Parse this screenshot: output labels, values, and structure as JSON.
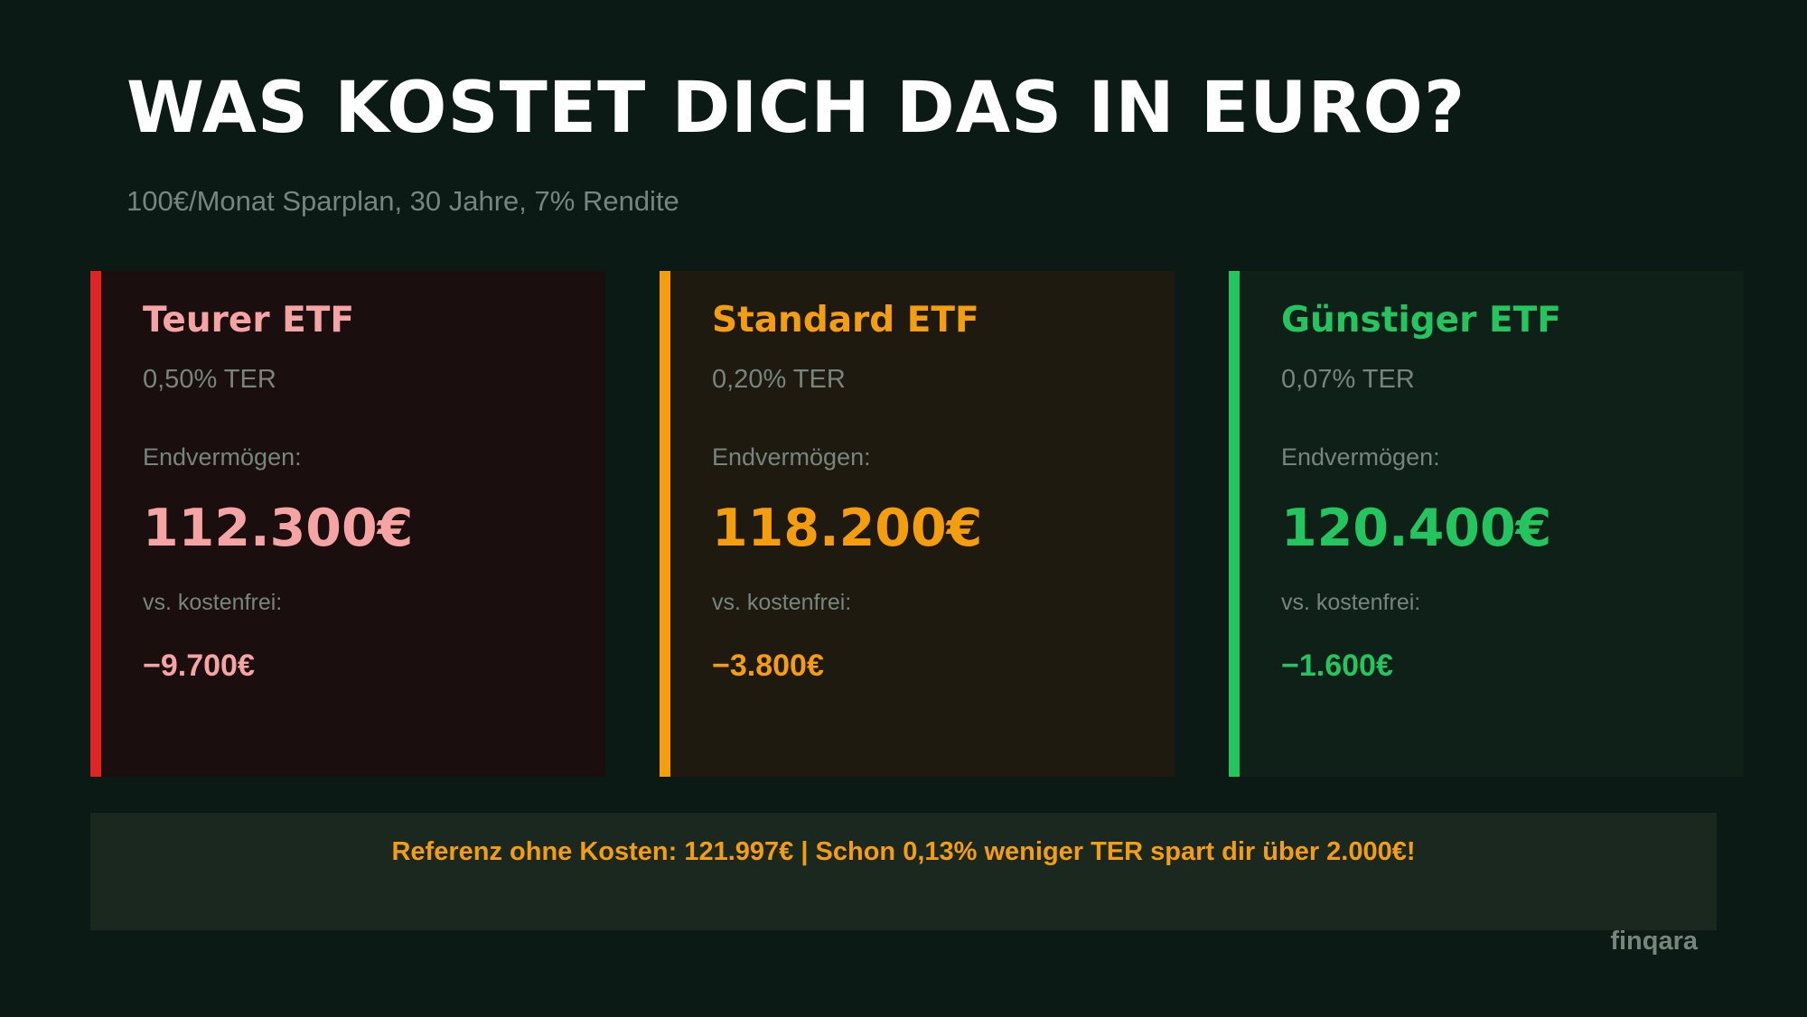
{
  "header": {
    "title": "WAS KOSTET DICH DAS IN EURO?",
    "subtitle": "100€/Monat Sparplan, 30 Jahre, 7% Rendite"
  },
  "cards": [
    {
      "name": "Teurer ETF",
      "ter": "0,50% TER",
      "end_label": "Endvermögen:",
      "end_value": "112.300€",
      "vs_label": "vs. kostenfrei:",
      "diff": "−9.700€",
      "accent": "#e02424",
      "text_color": "#f5a3a3",
      "bg": "#1a0e0f"
    },
    {
      "name": "Standard ETF",
      "ter": "0,20% TER",
      "end_label": "Endvermögen:",
      "end_value": "118.200€",
      "vs_label": "vs. kostenfrei:",
      "diff": "−3.800€",
      "accent": "#f59e0b",
      "text_color": "#f59e0b",
      "bg": "#1e1a10"
    },
    {
      "name": "Günstiger ETF",
      "ter": "0,07% TER",
      "end_label": "Endvermögen:",
      "end_value": "120.400€",
      "vs_label": "vs. kostenfrei:",
      "diff": "−1.600€",
      "accent": "#22c55e",
      "text_color": "#22c55e",
      "bg": "#0f2018"
    }
  ],
  "banner": {
    "text": "Referenz ohne Kosten: 121.997€  |  Schon 0,13% weniger TER spart dir über 2.000€!",
    "color": "#f59e0b"
  },
  "brand": {
    "logo": "finqara"
  }
}
